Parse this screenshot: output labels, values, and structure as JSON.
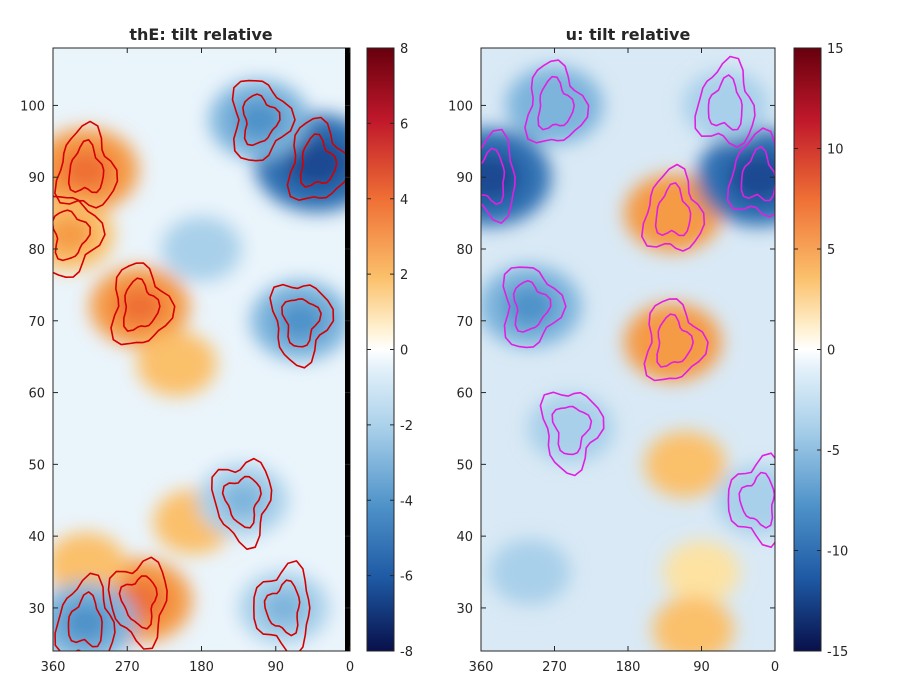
{
  "figure": {
    "background": "#ffffff",
    "axis_color": "#262626"
  },
  "chart_data": [
    {
      "type": "heatmap",
      "title": "thE: tilt relative",
      "xlim": [
        360,
        0
      ],
      "ylim": [
        24,
        108
      ],
      "x_ticks": [
        "360",
        "270",
        "180",
        "90",
        "0"
      ],
      "x_tick_values": [
        360,
        270,
        180,
        90,
        0
      ],
      "y_ticks": [
        "30",
        "40",
        "50",
        "60",
        "70",
        "80",
        "90",
        "100"
      ],
      "y_tick_values": [
        30,
        40,
        50,
        60,
        70,
        80,
        90,
        100
      ],
      "colorbar": {
        "ticks": [
          "8",
          "6",
          "4",
          "2",
          "0",
          "-2",
          "-4",
          "-6",
          "-8"
        ],
        "tick_values": [
          8,
          6,
          4,
          2,
          0,
          -2,
          -4,
          -6,
          -8
        ],
        "range": [
          -8,
          8
        ],
        "colormap": "blue-white-red"
      },
      "contour_color": "#d40000",
      "features": [
        {
          "kind": "warm",
          "x": 320,
          "y": 91,
          "value": 4.5
        },
        {
          "kind": "warm",
          "x": 255,
          "y": 72,
          "value": 4
        },
        {
          "kind": "warm",
          "x": 340,
          "y": 82,
          "value": 3
        },
        {
          "kind": "warm",
          "x": 210,
          "y": 64,
          "value": 2
        },
        {
          "kind": "warm",
          "x": 255,
          "y": 31,
          "value": 4.5
        },
        {
          "kind": "warm",
          "x": 190,
          "y": 42,
          "value": 2
        },
        {
          "kind": "warm",
          "x": 320,
          "y": 36,
          "value": 2
        },
        {
          "kind": "cold",
          "x": 40,
          "y": 92,
          "value": -6.5
        },
        {
          "kind": "cold",
          "x": 110,
          "y": 98,
          "value": -4
        },
        {
          "kind": "cold",
          "x": 60,
          "y": 70,
          "value": -4
        },
        {
          "kind": "cold",
          "x": 130,
          "y": 45,
          "value": -3
        },
        {
          "kind": "cold",
          "x": 80,
          "y": 30,
          "value": -3
        },
        {
          "kind": "cold",
          "x": 320,
          "y": 28,
          "value": -4
        },
        {
          "kind": "cold",
          "x": 180,
          "y": 80,
          "value": -2
        }
      ]
    },
    {
      "type": "heatmap",
      "title": "u: tilt relative",
      "xlim": [
        360,
        0
      ],
      "ylim": [
        24,
        108
      ],
      "x_ticks": [
        "360",
        "270",
        "180",
        "90",
        "0"
      ],
      "x_tick_values": [
        360,
        270,
        180,
        90,
        0
      ],
      "y_ticks": [
        "30",
        "40",
        "50",
        "60",
        "70",
        "80",
        "90",
        "100"
      ],
      "y_tick_values": [
        30,
        40,
        50,
        60,
        70,
        80,
        90,
        100
      ],
      "colorbar": {
        "ticks": [
          "15",
          "10",
          "5",
          "0",
          "-5",
          "-10",
          "-15"
        ],
        "tick_values": [
          15,
          10,
          5,
          0,
          -5,
          -10,
          -15
        ],
        "range": [
          -15,
          15
        ],
        "colormap": "blue-white-red"
      },
      "contour_color": "#e020e0",
      "features": [
        {
          "kind": "warm",
          "x": 125,
          "y": 85,
          "value": 7
        },
        {
          "kind": "warm",
          "x": 125,
          "y": 67,
          "value": 7
        },
        {
          "kind": "warm",
          "x": 110,
          "y": 50,
          "value": 4
        },
        {
          "kind": "warm",
          "x": 90,
          "y": 35,
          "value": 3
        },
        {
          "kind": "warm",
          "x": 100,
          "y": 27,
          "value": 4
        },
        {
          "kind": "cold",
          "x": 350,
          "y": 90,
          "value": -12
        },
        {
          "kind": "cold",
          "x": 20,
          "y": 90,
          "value": -12
        },
        {
          "kind": "cold",
          "x": 270,
          "y": 100,
          "value": -7
        },
        {
          "kind": "cold",
          "x": 300,
          "y": 72,
          "value": -8
        },
        {
          "kind": "cold",
          "x": 250,
          "y": 55,
          "value": -5
        },
        {
          "kind": "cold",
          "x": 300,
          "y": 35,
          "value": -4
        },
        {
          "kind": "cold",
          "x": 20,
          "y": 45,
          "value": -5
        },
        {
          "kind": "cold",
          "x": 60,
          "y": 100,
          "value": -5
        }
      ]
    }
  ]
}
